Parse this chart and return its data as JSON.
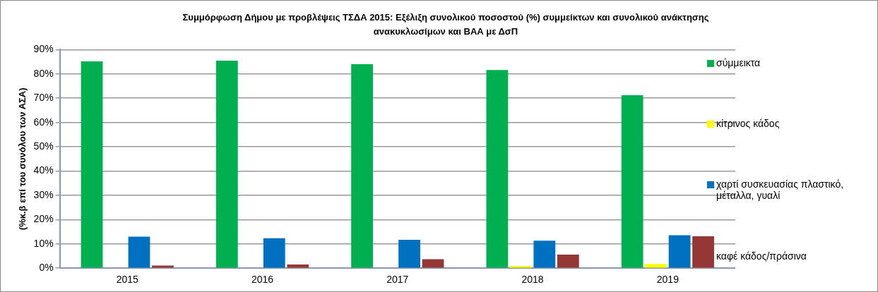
{
  "chart_data": {
    "type": "bar",
    "title": "Συμμόρφωση Δήμου με προβλέψεις ΤΣΔΑ 2015:  Εξέλιξη συνολικού  ποσοστού (%) συμμείκτων και συνολικού ανάκτησης ανακυκλωσίμων και  ΒΑΑ  με ΔσΠ",
    "ylabel": "(%κ.β επί του συνόλου των ΑΣΑ)",
    "categories": [
      "2015",
      "2016",
      "2017",
      "2018",
      "2019"
    ],
    "series": [
      {
        "name": "σύμμεικτα",
        "color": "#00b050",
        "values": [
          85.2,
          85.5,
          84.0,
          81.6,
          71.2
        ]
      },
      {
        "name": "κίτρινος κάδος",
        "color": "#ffff00",
        "values": [
          0,
          0,
          0,
          0.9,
          1.7
        ]
      },
      {
        "name": "χαρτί συσκευασίας πλαστικό, μέταλλα, γυαλί",
        "color": "#0070c0",
        "values": [
          13.0,
          12.3,
          11.7,
          11.3,
          13.6
        ]
      },
      {
        "name": "καφέ κάδος/πράσινα",
        "color": "#953735",
        "values": [
          1.1,
          1.5,
          3.7,
          5.6,
          13.1
        ]
      }
    ],
    "ylim": [
      0,
      90
    ],
    "yticks": [
      {
        "value": 0,
        "label": "0%"
      },
      {
        "value": 10,
        "label": "10%"
      },
      {
        "value": 20,
        "label": "20%"
      },
      {
        "value": 30,
        "label": "30%"
      },
      {
        "value": 40,
        "label": "40%"
      },
      {
        "value": 50,
        "label": "50%"
      },
      {
        "value": 60,
        "label": "60%"
      },
      {
        "value": 70,
        "label": "70%"
      },
      {
        "value": 80,
        "label": "80%"
      },
      {
        "value": 90,
        "label": "90%"
      }
    ],
    "grid": "y",
    "legend": "right"
  }
}
